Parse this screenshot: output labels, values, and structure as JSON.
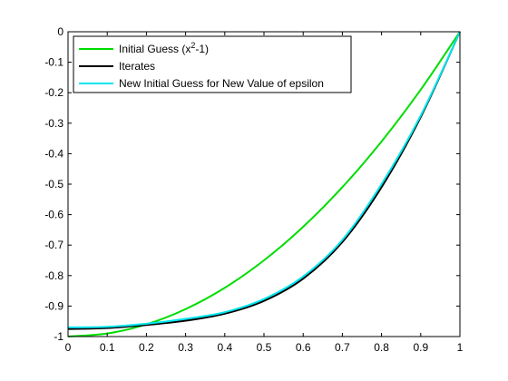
{
  "chart_data": {
    "type": "line",
    "title": "",
    "xlabel": "",
    "ylabel": "",
    "xlim": [
      0,
      1
    ],
    "ylim": [
      -1,
      0
    ],
    "x_ticks": [
      0,
      0.1,
      0.2,
      0.3,
      0.4,
      0.5,
      0.6,
      0.7,
      0.8,
      0.9,
      1
    ],
    "x_tick_labels": [
      "0",
      "0.1",
      "0.2",
      "0.3",
      "0.4",
      "0.5",
      "0.6",
      "0.7",
      "0.8",
      "0.9",
      "1"
    ],
    "y_ticks": [
      0,
      -0.1,
      -0.2,
      -0.3,
      -0.4,
      -0.5,
      -0.6,
      -0.7,
      -0.8,
      -0.9,
      -1
    ],
    "y_tick_labels": [
      "0",
      "-0.1",
      "-0.2",
      "-0.3",
      "-0.4",
      "-0.5",
      "-0.6",
      "-0.7",
      "-0.8",
      "-0.9",
      "-1"
    ],
    "grid": false,
    "legend_position": "top-left",
    "x": [
      0,
      0.1,
      0.2,
      0.3,
      0.4,
      0.5,
      0.6,
      0.7,
      0.8,
      0.9,
      1
    ],
    "series": [
      {
        "name": "Initial Guess (x2-1)",
        "legend_main": "Initial Guess (x",
        "legend_sup": "2",
        "legend_tail": "-1)",
        "color": "#00dd00",
        "values": [
          -1.0,
          -0.99,
          -0.96,
          -0.91,
          -0.84,
          -0.75,
          -0.64,
          -0.51,
          -0.36,
          -0.19,
          0.0
        ]
      },
      {
        "name": "Iterates",
        "legend_main": "Iterates",
        "color": "#000000",
        "values": [
          -0.975,
          -0.972,
          -0.962,
          -0.948,
          -0.925,
          -0.883,
          -0.81,
          -0.69,
          -0.51,
          -0.28,
          0.0
        ]
      },
      {
        "name": "New Initial Guess for New Value of epsilon",
        "legend_main": "New Initial Guess for New Value of epsilon",
        "color": "#00e5ee",
        "values": [
          -0.97,
          -0.968,
          -0.958,
          -0.942,
          -0.92,
          -0.877,
          -0.803,
          -0.683,
          -0.5,
          -0.275,
          0.0
        ]
      }
    ]
  }
}
